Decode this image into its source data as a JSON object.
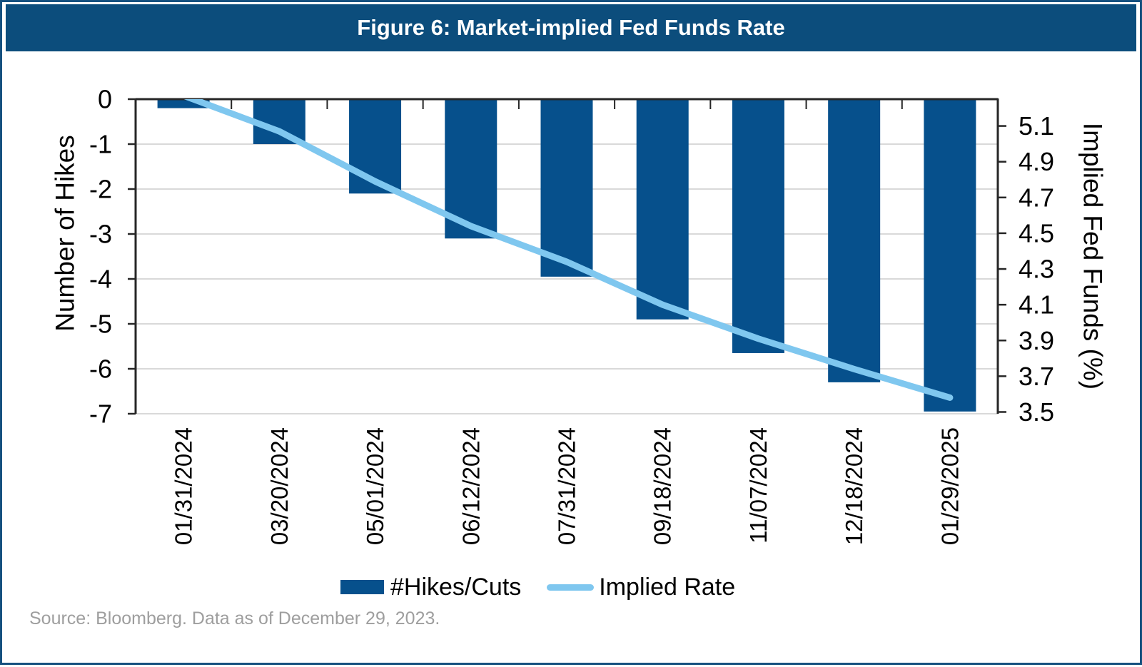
{
  "figure": {
    "title": "Figure 6: Market-implied Fed Funds Rate"
  },
  "legend": {
    "bar_label": "#Hikes/Cuts",
    "line_label": "Implied Rate"
  },
  "source_note": "Source: Bloomberg. Data as of December 29, 2023.",
  "colors": {
    "header_bg": "#0C4D7C",
    "border": "#16517F",
    "bar": "#06508C",
    "line": "#7FC7EF",
    "grid": "#D9D9D9",
    "axis": "#262626",
    "tick_text": "#000000",
    "source_text": "#9E9E9E",
    "title_text": "#FFFFFF"
  },
  "chart_data": {
    "type": "bar",
    "title": "Figure 6: Market-implied Fed Funds Rate",
    "categories": [
      "01/31/2024",
      "03/20/2024",
      "05/01/2024",
      "06/12/2024",
      "07/31/2024",
      "09/18/2024",
      "11/07/2024",
      "12/18/2024",
      "01/29/2025"
    ],
    "series": [
      {
        "name": "#Hikes/Cuts",
        "type": "bar",
        "axis": "left",
        "values": [
          -0.2,
          -1.0,
          -2.1,
          -3.1,
          -3.95,
          -4.9,
          -5.65,
          -6.3,
          -6.95
        ]
      },
      {
        "name": "Implied Rate",
        "type": "line",
        "axis": "right",
        "values": [
          5.27,
          5.07,
          4.79,
          4.54,
          4.34,
          4.1,
          3.91,
          3.74,
          3.58
        ]
      }
    ],
    "left_axis": {
      "label": "Number of Hikes",
      "min": -7,
      "max": 0,
      "ticks": [
        0,
        -1,
        -2,
        -3,
        -4,
        -5,
        -6,
        -7
      ]
    },
    "right_axis": {
      "label": "Implied Fed Funds (%)",
      "min": 3.49,
      "max": 5.25,
      "ticks": [
        5.1,
        4.9,
        4.7,
        4.5,
        4.3,
        4.1,
        3.9,
        3.7,
        3.5
      ]
    },
    "grid": "horizontal",
    "legend_position": "bottom"
  }
}
